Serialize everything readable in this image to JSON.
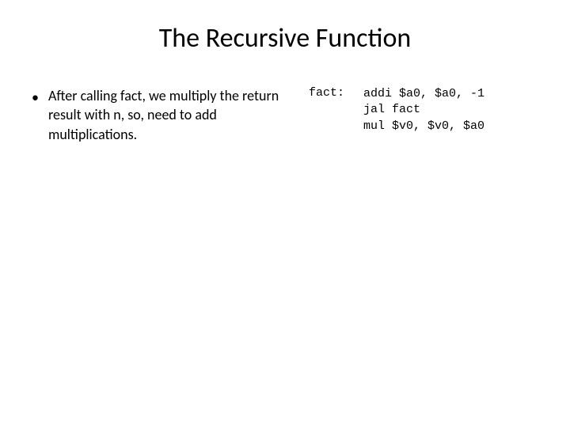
{
  "slide": {
    "title": "The Recursive Function",
    "title_fontsize": 34,
    "title_color": "#000000",
    "background_color": "#ffffff",
    "bullet": {
      "marker": "•",
      "text": "After calling fact, we multiply the return result with n, so, need to add multiplications.",
      "fontsize": 18,
      "color": "#000000"
    },
    "code": {
      "label": "fact:",
      "lines": [
        "addi $a0, $a0, -1",
        "jal fact",
        "mul $v0, $v0, $a0"
      ],
      "font_family": "Courier New",
      "fontsize": 15,
      "color": "#000000"
    }
  }
}
